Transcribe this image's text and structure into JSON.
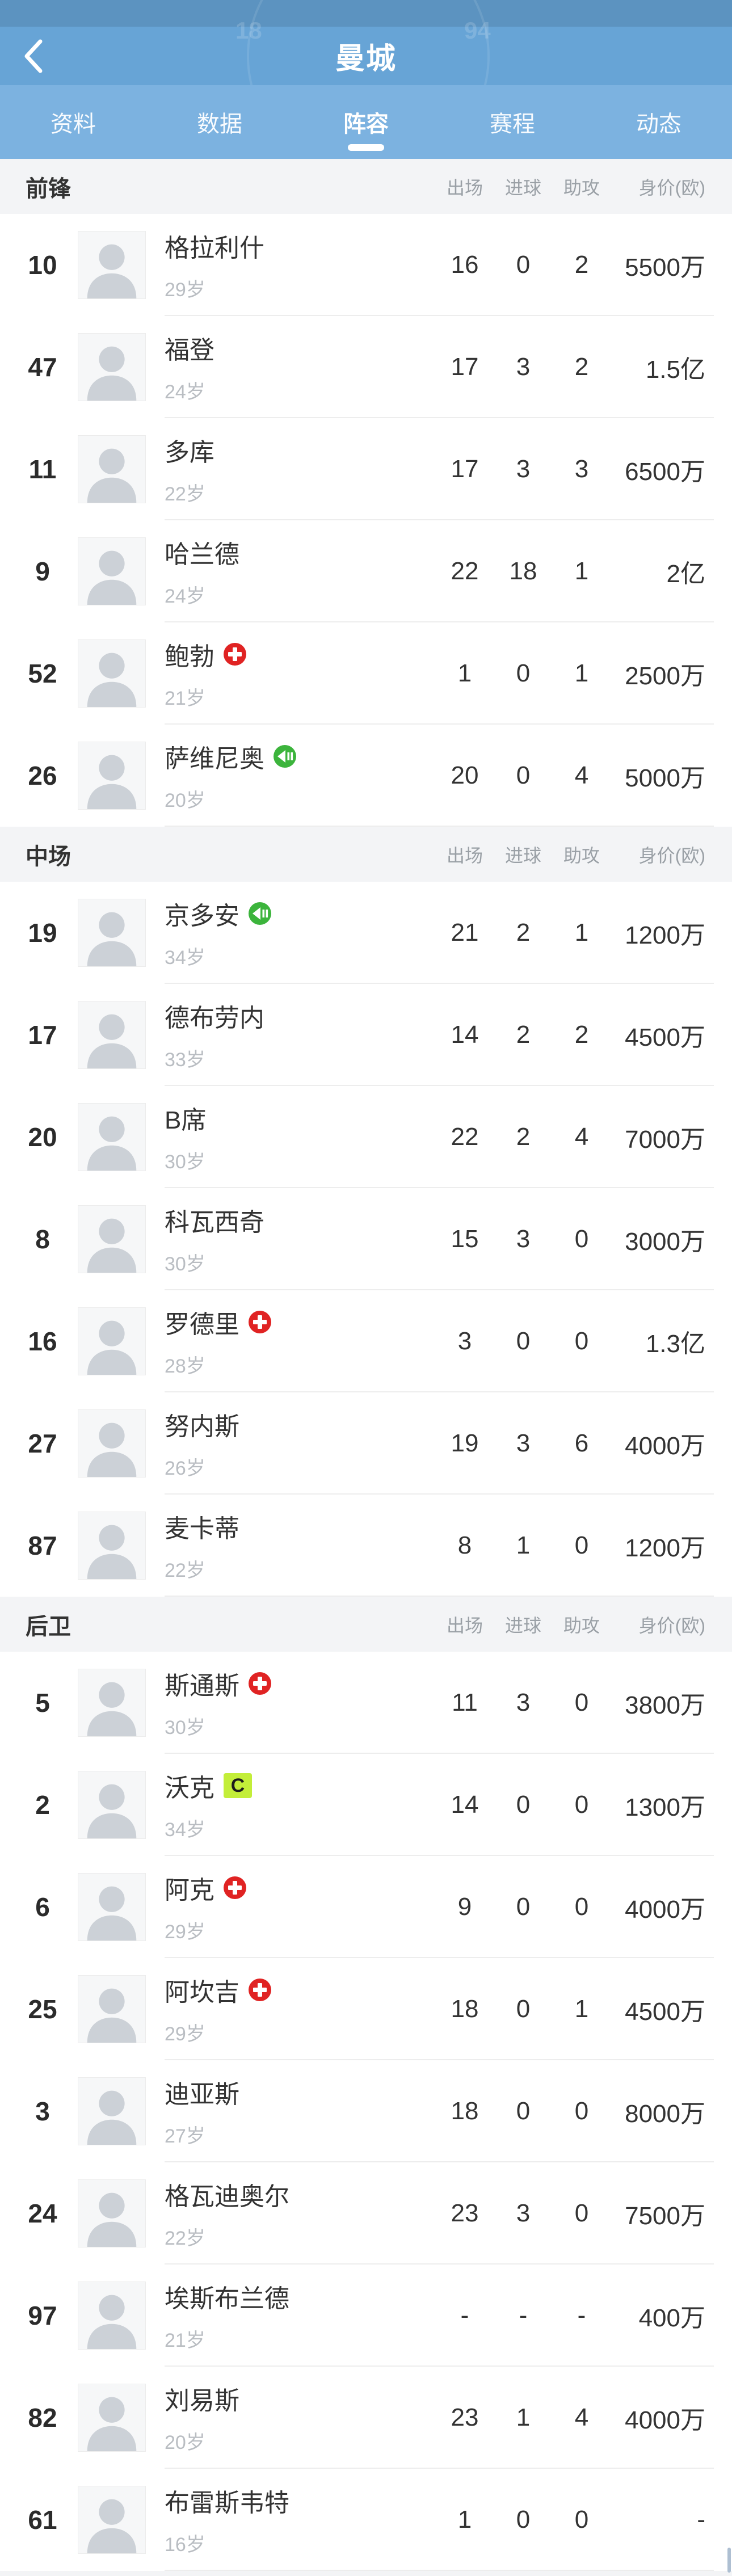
{
  "header": {
    "title": "曼城"
  },
  "tabs": {
    "active_index": 2,
    "items": [
      {
        "label": "资料"
      },
      {
        "label": "数据"
      },
      {
        "label": "阵容"
      },
      {
        "label": "赛程"
      },
      {
        "label": "动态"
      }
    ]
  },
  "columns": [
    "出场",
    "进球",
    "助攻",
    "身价(欧)"
  ],
  "badges_legend": {
    "injury": "red-plus-injury-icon",
    "transfer": "green-transfer-in-icon",
    "captain": "C"
  },
  "sections": [
    {
      "title": "前锋",
      "players": [
        {
          "num": "10",
          "name": "格拉利什",
          "age": "29岁",
          "badge": "",
          "apps": "16",
          "goals": "0",
          "assists": "2",
          "value": "5500万"
        },
        {
          "num": "47",
          "name": "福登",
          "age": "24岁",
          "badge": "",
          "apps": "17",
          "goals": "3",
          "assists": "2",
          "value": "1.5亿"
        },
        {
          "num": "11",
          "name": "多库",
          "age": "22岁",
          "badge": "",
          "apps": "17",
          "goals": "3",
          "assists": "3",
          "value": "6500万"
        },
        {
          "num": "9",
          "name": "哈兰德",
          "age": "24岁",
          "badge": "",
          "apps": "22",
          "goals": "18",
          "assists": "1",
          "value": "2亿"
        },
        {
          "num": "52",
          "name": "鲍勃",
          "age": "21岁",
          "badge": "injury",
          "apps": "1",
          "goals": "0",
          "assists": "1",
          "value": "2500万"
        },
        {
          "num": "26",
          "name": "萨维尼奥",
          "age": "20岁",
          "badge": "transfer",
          "apps": "20",
          "goals": "0",
          "assists": "4",
          "value": "5000万"
        }
      ]
    },
    {
      "title": "中场",
      "players": [
        {
          "num": "19",
          "name": "京多安",
          "age": "34岁",
          "badge": "transfer",
          "apps": "21",
          "goals": "2",
          "assists": "1",
          "value": "1200万"
        },
        {
          "num": "17",
          "name": "德布劳内",
          "age": "33岁",
          "badge": "",
          "apps": "14",
          "goals": "2",
          "assists": "2",
          "value": "4500万"
        },
        {
          "num": "20",
          "name": "B席",
          "age": "30岁",
          "badge": "",
          "apps": "22",
          "goals": "2",
          "assists": "4",
          "value": "7000万"
        },
        {
          "num": "8",
          "name": "科瓦西奇",
          "age": "30岁",
          "badge": "",
          "apps": "15",
          "goals": "3",
          "assists": "0",
          "value": "3000万"
        },
        {
          "num": "16",
          "name": "罗德里",
          "age": "28岁",
          "badge": "injury",
          "apps": "3",
          "goals": "0",
          "assists": "0",
          "value": "1.3亿"
        },
        {
          "num": "27",
          "name": "努内斯",
          "age": "26岁",
          "badge": "",
          "apps": "19",
          "goals": "3",
          "assists": "6",
          "value": "4000万"
        },
        {
          "num": "87",
          "name": "麦卡蒂",
          "age": "22岁",
          "badge": "",
          "apps": "8",
          "goals": "1",
          "assists": "0",
          "value": "1200万"
        }
      ]
    },
    {
      "title": "后卫",
      "players": [
        {
          "num": "5",
          "name": "斯通斯",
          "age": "30岁",
          "badge": "injury",
          "apps": "11",
          "goals": "3",
          "assists": "0",
          "value": "3800万"
        },
        {
          "num": "2",
          "name": "沃克",
          "age": "34岁",
          "badge": "captain",
          "apps": "14",
          "goals": "0",
          "assists": "0",
          "value": "1300万"
        },
        {
          "num": "6",
          "name": "阿克",
          "age": "29岁",
          "badge": "injury",
          "apps": "9",
          "goals": "0",
          "assists": "0",
          "value": "4000万"
        },
        {
          "num": "25",
          "name": "阿坎吉",
          "age": "29岁",
          "badge": "injury",
          "apps": "18",
          "goals": "0",
          "assists": "1",
          "value": "4500万"
        },
        {
          "num": "3",
          "name": "迪亚斯",
          "age": "27岁",
          "badge": "",
          "apps": "18",
          "goals": "0",
          "assists": "0",
          "value": "8000万"
        },
        {
          "num": "24",
          "name": "格瓦迪奥尔",
          "age": "22岁",
          "badge": "",
          "apps": "23",
          "goals": "3",
          "assists": "0",
          "value": "7500万"
        },
        {
          "num": "97",
          "name": "埃斯布兰德",
          "age": "21岁",
          "badge": "",
          "apps": "-",
          "goals": "-",
          "assists": "-",
          "value": "400万"
        },
        {
          "num": "82",
          "name": "刘易斯",
          "age": "20岁",
          "badge": "",
          "apps": "23",
          "goals": "1",
          "assists": "4",
          "value": "4000万"
        },
        {
          "num": "61",
          "name": "布雷斯韦特",
          "age": "16岁",
          "badge": "",
          "apps": "1",
          "goals": "0",
          "assists": "0",
          "value": "-"
        }
      ]
    }
  ],
  "colors": {
    "header_blue": "#67a4d6",
    "tabbar_blue": "#7cb2e0",
    "band_gray": "#f3f4f6",
    "injury_red": "#e02323",
    "transfer_green": "#3cb43c",
    "captain_yellow_green": "#c3ee39"
  }
}
